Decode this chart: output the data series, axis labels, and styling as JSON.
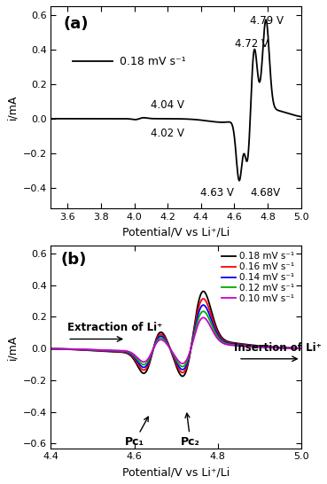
{
  "panel_a": {
    "xlim": [
      3.5,
      5.0
    ],
    "ylim": [
      -0.52,
      0.65
    ],
    "xticks": [
      3.6,
      3.8,
      4.0,
      4.2,
      4.4,
      4.6,
      4.8,
      5.0
    ],
    "yticks": [
      -0.4,
      -0.2,
      0.0,
      0.2,
      0.4,
      0.6
    ],
    "xlabel": "Potential/V vs Li⁺/Li",
    "ylabel": "i/mA",
    "label": "(a)",
    "legend_text": "0.18 mV s⁻¹"
  },
  "panel_b": {
    "xlim": [
      4.4,
      5.0
    ],
    "ylim": [
      -0.63,
      0.65
    ],
    "xticks": [
      4.4,
      4.6,
      4.8,
      5.0
    ],
    "yticks": [
      -0.6,
      -0.4,
      -0.2,
      0.0,
      0.2,
      0.4,
      0.6
    ],
    "xlabel": "Potential/V vs Li⁺/Li",
    "ylabel": "i/mA",
    "label": "(b)",
    "scan_rates": [
      "0.18 mV s⁻¹",
      "0.16 mV s⁻¹",
      "0.14 mV s⁻¹",
      "0.12 mV s⁻¹",
      "0.10 mV s⁻¹"
    ],
    "colors": [
      "#000000",
      "#ff0000",
      "#0000ff",
      "#00aa00",
      "#cc00cc"
    ],
    "scales": [
      1.0,
      0.87,
      0.76,
      0.65,
      0.54
    ],
    "extraction_text": "Extraction of Li⁺",
    "insertion_text": "Insertion of Li⁺",
    "pc1_text": "Pc₁",
    "pc2_text": "Pc₂"
  },
  "line_color": "#000000",
  "bg_color": "#ffffff"
}
